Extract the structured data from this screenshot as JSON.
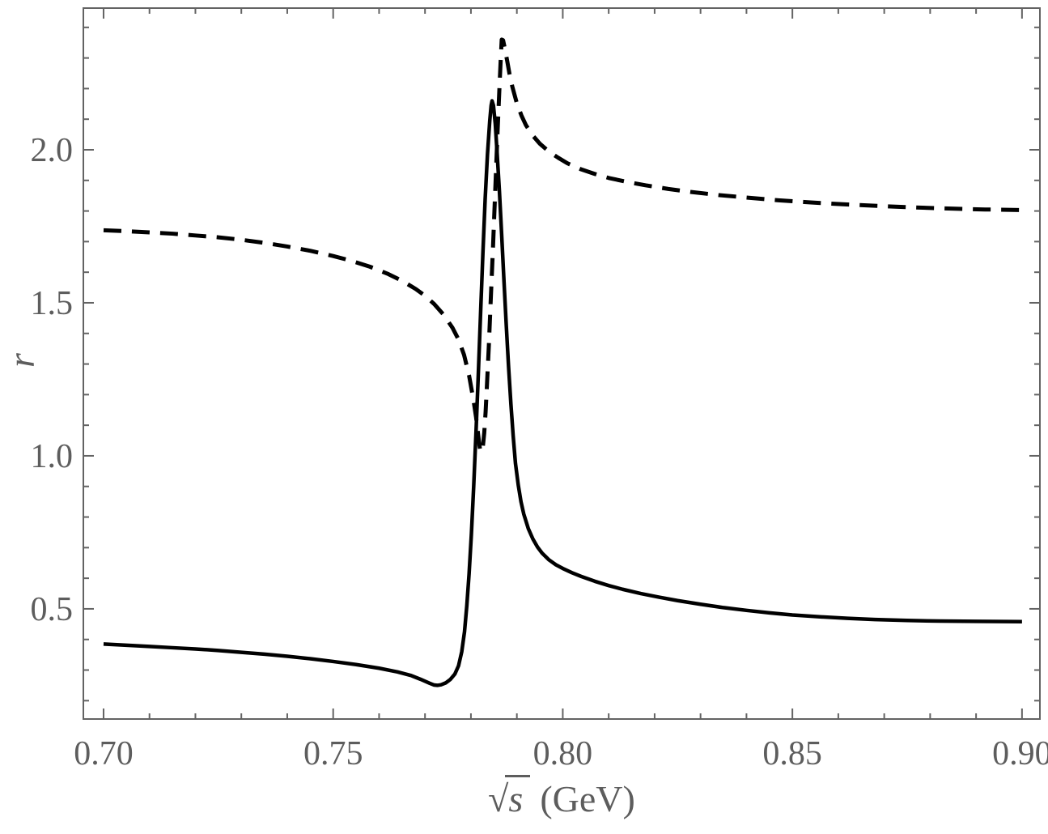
{
  "figure": {
    "background": "#ffffff"
  },
  "chart_data": {
    "type": "line",
    "title": "",
    "xlabel": {
      "radical": "√",
      "arg": "s",
      "unit": "(GeV)"
    },
    "ylabel": "r",
    "xlim": [
      0.6956,
      0.9039
    ],
    "ylim": [
      0.14,
      2.463
    ],
    "grid": false,
    "legend": "none",
    "frame_color": "#636363",
    "label_color": "#5d5d5d",
    "curve_color": "#000000",
    "x_axis": {
      "major": [
        0.7,
        0.75,
        0.8,
        0.85,
        0.9
      ],
      "major_labels": [
        "0.70",
        "0.75",
        "0.80",
        "0.85",
        "0.90"
      ],
      "minor_step": 0.01
    },
    "y_axis": {
      "major": [
        0.5,
        1.0,
        1.5,
        2.0
      ],
      "major_labels": [
        "0.5",
        "1.0",
        "1.5",
        "2.0"
      ],
      "minor_step": 0.1
    },
    "series": [
      {
        "name": "solid",
        "style": "solid",
        "points": [
          [
            0.7,
            0.385
          ],
          [
            0.705,
            0.381
          ],
          [
            0.71,
            0.377
          ],
          [
            0.715,
            0.373
          ],
          [
            0.72,
            0.369
          ],
          [
            0.725,
            0.364
          ],
          [
            0.73,
            0.358
          ],
          [
            0.735,
            0.352
          ],
          [
            0.74,
            0.345
          ],
          [
            0.745,
            0.337
          ],
          [
            0.75,
            0.328
          ],
          [
            0.755,
            0.318
          ],
          [
            0.76,
            0.306
          ],
          [
            0.764,
            0.294
          ],
          [
            0.767,
            0.282
          ],
          [
            0.769,
            0.27
          ],
          [
            0.771,
            0.257
          ],
          [
            0.772,
            0.251
          ],
          [
            0.7727,
            0.25
          ],
          [
            0.7735,
            0.252
          ],
          [
            0.7745,
            0.258
          ],
          [
            0.7755,
            0.269
          ],
          [
            0.7765,
            0.287
          ],
          [
            0.7773,
            0.314
          ],
          [
            0.778,
            0.36
          ],
          [
            0.7786,
            0.425
          ],
          [
            0.7791,
            0.51
          ],
          [
            0.7796,
            0.615
          ],
          [
            0.7801,
            0.745
          ],
          [
            0.7806,
            0.9
          ],
          [
            0.7811,
            1.075
          ],
          [
            0.7816,
            1.265
          ],
          [
            0.7821,
            1.465
          ],
          [
            0.7826,
            1.66
          ],
          [
            0.7831,
            1.84
          ],
          [
            0.7836,
            1.985
          ],
          [
            0.7841,
            2.095
          ],
          [
            0.7844,
            2.145
          ],
          [
            0.7846,
            2.16
          ],
          [
            0.7849,
            2.145
          ],
          [
            0.7853,
            2.085
          ],
          [
            0.7857,
            1.99
          ],
          [
            0.7862,
            1.865
          ],
          [
            0.7867,
            1.72
          ],
          [
            0.7872,
            1.57
          ],
          [
            0.7877,
            1.425
          ],
          [
            0.7882,
            1.29
          ],
          [
            0.7887,
            1.17
          ],
          [
            0.7892,
            1.065
          ],
          [
            0.7897,
            0.975
          ],
          [
            0.7903,
            0.905
          ],
          [
            0.7909,
            0.85
          ],
          [
            0.7915,
            0.81
          ],
          [
            0.7925,
            0.762
          ],
          [
            0.7935,
            0.728
          ],
          [
            0.7945,
            0.702
          ],
          [
            0.7955,
            0.682
          ],
          [
            0.797,
            0.66
          ],
          [
            0.7985,
            0.644
          ],
          [
            0.8,
            0.632
          ],
          [
            0.802,
            0.618
          ],
          [
            0.804,
            0.606
          ],
          [
            0.807,
            0.59
          ],
          [
            0.81,
            0.576
          ],
          [
            0.813,
            0.564
          ],
          [
            0.817,
            0.55
          ],
          [
            0.821,
            0.538
          ],
          [
            0.825,
            0.527
          ],
          [
            0.83,
            0.515
          ],
          [
            0.835,
            0.504
          ],
          [
            0.84,
            0.495
          ],
          [
            0.845,
            0.487
          ],
          [
            0.85,
            0.48
          ],
          [
            0.856,
            0.474
          ],
          [
            0.862,
            0.469
          ],
          [
            0.868,
            0.465
          ],
          [
            0.875,
            0.462
          ],
          [
            0.882,
            0.46
          ],
          [
            0.89,
            0.459
          ],
          [
            0.9,
            0.458
          ]
        ]
      },
      {
        "name": "dashed",
        "style": "dashed",
        "points": [
          [
            0.7,
            1.737
          ],
          [
            0.705,
            1.734
          ],
          [
            0.71,
            1.73
          ],
          [
            0.715,
            1.726
          ],
          [
            0.72,
            1.72
          ],
          [
            0.725,
            1.714
          ],
          [
            0.73,
            1.706
          ],
          [
            0.735,
            1.696
          ],
          [
            0.74,
            1.684
          ],
          [
            0.745,
            1.67
          ],
          [
            0.75,
            1.653
          ],
          [
            0.754,
            1.637
          ],
          [
            0.758,
            1.618
          ],
          [
            0.762,
            1.594
          ],
          [
            0.765,
            1.572
          ],
          [
            0.768,
            1.545
          ],
          [
            0.77,
            1.523
          ],
          [
            0.772,
            1.496
          ],
          [
            0.774,
            1.462
          ],
          [
            0.776,
            1.418
          ],
          [
            0.7773,
            1.38
          ],
          [
            0.7785,
            1.33
          ],
          [
            0.7796,
            1.262
          ],
          [
            0.7806,
            1.178
          ],
          [
            0.7811,
            1.128
          ],
          [
            0.7815,
            1.078
          ],
          [
            0.7818,
            1.04
          ],
          [
            0.782,
            1.02
          ],
          [
            0.7823,
            1.012
          ],
          [
            0.7826,
            1.03
          ],
          [
            0.7829,
            1.075
          ],
          [
            0.7832,
            1.145
          ],
          [
            0.7835,
            1.235
          ],
          [
            0.7839,
            1.36
          ],
          [
            0.7843,
            1.505
          ],
          [
            0.7848,
            1.68
          ],
          [
            0.7853,
            1.87
          ],
          [
            0.7858,
            2.06
          ],
          [
            0.7862,
            2.2
          ],
          [
            0.7865,
            2.3
          ],
          [
            0.7867,
            2.36
          ],
          [
            0.787,
            2.358
          ],
          [
            0.7874,
            2.33
          ],
          [
            0.7879,
            2.29
          ],
          [
            0.7884,
            2.248
          ],
          [
            0.789,
            2.207
          ],
          [
            0.79,
            2.152
          ],
          [
            0.791,
            2.112
          ],
          [
            0.792,
            2.08
          ],
          [
            0.7935,
            2.046
          ],
          [
            0.795,
            2.02
          ],
          [
            0.797,
            1.994
          ],
          [
            0.799,
            1.974
          ],
          [
            0.801,
            1.956
          ],
          [
            0.804,
            1.936
          ],
          [
            0.807,
            1.921
          ],
          [
            0.81,
            1.908
          ],
          [
            0.814,
            1.895
          ],
          [
            0.818,
            1.884
          ],
          [
            0.823,
            1.872
          ],
          [
            0.828,
            1.862
          ],
          [
            0.834,
            1.852
          ],
          [
            0.84,
            1.844
          ],
          [
            0.847,
            1.835
          ],
          [
            0.854,
            1.828
          ],
          [
            0.861,
            1.822
          ],
          [
            0.868,
            1.817
          ],
          [
            0.876,
            1.812
          ],
          [
            0.884,
            1.808
          ],
          [
            0.892,
            1.805
          ],
          [
            0.9,
            1.803
          ]
        ]
      }
    ]
  }
}
